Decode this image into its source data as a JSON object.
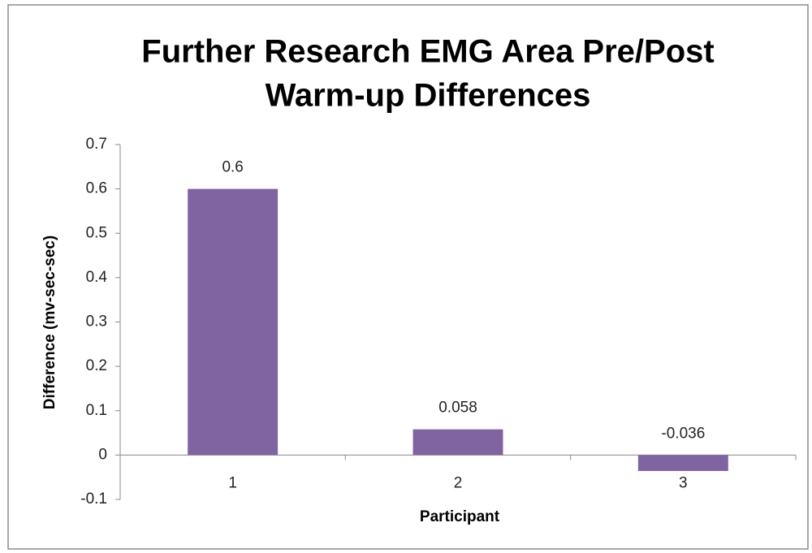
{
  "chart_data": {
    "type": "bar",
    "title": [
      "Further Research EMG Area Pre/Post",
      "Warm-up Differences"
    ],
    "x_label": "Participant",
    "y_label": "Difference (mv-sec-sec)",
    "categories": [
      "1",
      "2",
      "3"
    ],
    "values": [
      0.6,
      0.058,
      -0.036
    ],
    "color": "#8064a2",
    "ylim": [
      -0.1,
      0.7
    ],
    "yticks": [
      -0.1,
      0,
      0.1,
      0.2,
      0.3,
      0.4,
      0.5,
      0.6,
      0.7
    ],
    "grid": false
  }
}
